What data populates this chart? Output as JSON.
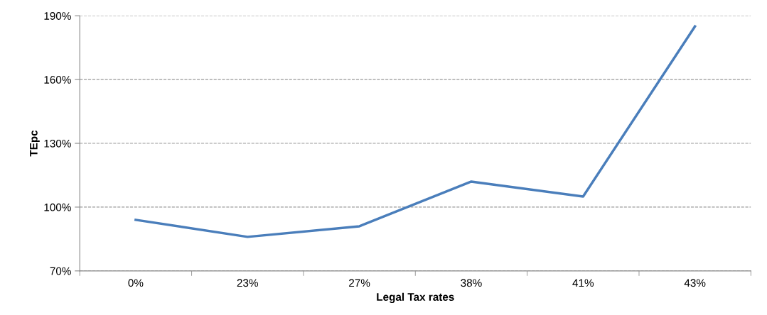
{
  "chart_data": {
    "type": "line",
    "xlabel": "Legal Tax rates",
    "ylabel": "TEpc",
    "categories": [
      "0%",
      "23%",
      "27%",
      "38%",
      "41%",
      "43%"
    ],
    "series": [
      {
        "color": "#4a7ebb",
        "values": [
          94,
          86,
          91,
          112,
          105,
          185
        ]
      }
    ],
    "ylim": [
      70,
      190
    ],
    "yticks": [
      {
        "value": 70,
        "label": "70%"
      },
      {
        "value": 100,
        "label": "100%"
      },
      {
        "value": 130,
        "label": "130%"
      },
      {
        "value": 160,
        "label": "160%"
      },
      {
        "value": 190,
        "label": "190%"
      }
    ],
    "grid": "y",
    "line_style": "solid",
    "marker": "none"
  }
}
